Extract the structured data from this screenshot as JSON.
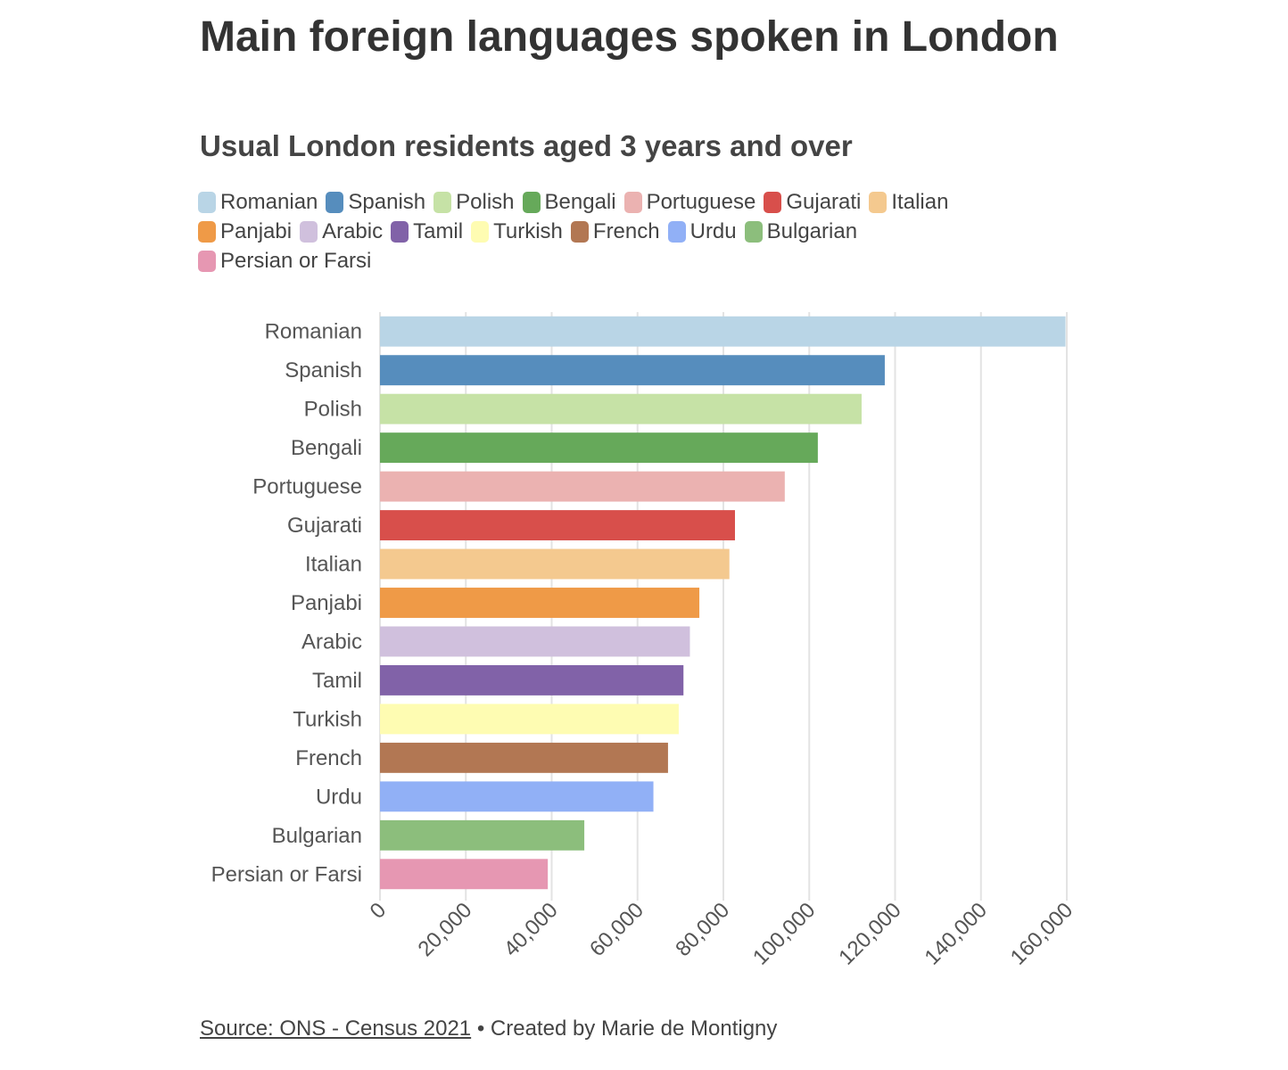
{
  "header": {
    "title": "Main foreign languages spoken in London",
    "subtitle": "Usual London residents aged 3 years and over"
  },
  "footer": {
    "source": "Source: ONS - Census 2021",
    "separator": " • ",
    "credit": "Created by Marie de Montigny"
  },
  "chart_data": {
    "type": "bar",
    "orientation": "horizontal",
    "title": "Main foreign languages spoken in London",
    "subtitle": "Usual London residents aged 3 years and over",
    "categories": [
      "Romanian",
      "Spanish",
      "Polish",
      "Bengali",
      "Portuguese",
      "Gujarati",
      "Italian",
      "Panjabi",
      "Arabic",
      "Tamil",
      "Turkish",
      "French",
      "Urdu",
      "Bulgarian",
      "Persian or Farsi"
    ],
    "values": [
      159700,
      117600,
      112200,
      102000,
      94300,
      82700,
      81400,
      74400,
      72200,
      70700,
      69600,
      67100,
      63700,
      47600,
      39100
    ],
    "colors": [
      "#b9d5e6",
      "#568dbd",
      "#c6e2a6",
      "#66a95a",
      "#ebb2b1",
      "#d84f4b",
      "#f4c98f",
      "#ef9a47",
      "#d0c0dd",
      "#8162a8",
      "#fefcb2",
      "#b27753",
      "#91b0f6",
      "#8cbe7c",
      "#e697b2"
    ],
    "xlim": [
      0,
      160000
    ],
    "xticks": [
      0,
      20000,
      40000,
      60000,
      80000,
      100000,
      120000,
      140000,
      160000
    ],
    "xtick_labels": [
      "0",
      "20,000",
      "40,000",
      "60,000",
      "80,000",
      "100,000",
      "120,000",
      "140,000",
      "160,000"
    ],
    "grid": true,
    "legend_position": "top"
  }
}
